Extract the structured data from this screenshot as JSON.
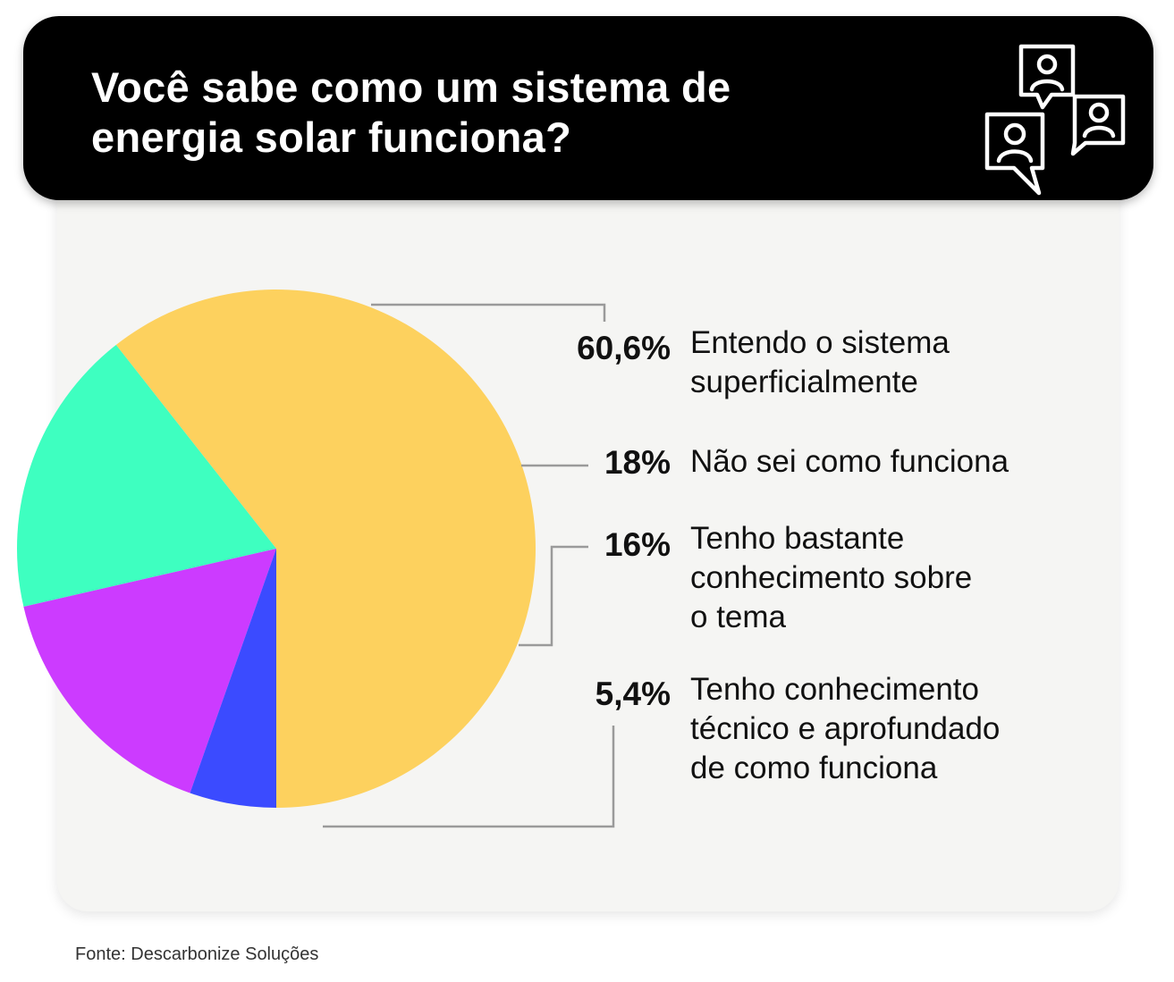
{
  "header": {
    "title_lines": [
      "Você sabe como um sistema de",
      "energia solar funciona?"
    ],
    "icon": "chat-users-icon"
  },
  "chart_data": {
    "type": "pie",
    "title": "Você sabe como um sistema de energia solar funciona?",
    "slices": [
      {
        "label": "Entendo o sistema superficialmente",
        "value": 60.6,
        "display": "60,6%",
        "color": "#fdd15e",
        "label_lines": [
          "Entendo o sistema",
          "superficialmente"
        ]
      },
      {
        "label": "Não sei como funciona",
        "value": 18,
        "display": "18%",
        "color": "#3effc0",
        "label_lines": [
          "Não sei como funciona"
        ]
      },
      {
        "label": "Tenho bastante conhecimento sobre o tema",
        "value": 16,
        "display": "16%",
        "color": "#cc3bff",
        "label_lines": [
          "Tenho bastante",
          "conhecimento sobre",
          "o tema"
        ]
      },
      {
        "label": "Tenho conhecimento técnico e aprofundado de como funciona",
        "value": 5.4,
        "display": "5,4%",
        "color": "#3b4bff",
        "label_lines": [
          "Tenho conhecimento",
          "técnico e aprofundado",
          "de como funciona"
        ]
      }
    ],
    "legend": "right",
    "grid": false
  },
  "source": "Fonte: Descarbonize Soluções"
}
